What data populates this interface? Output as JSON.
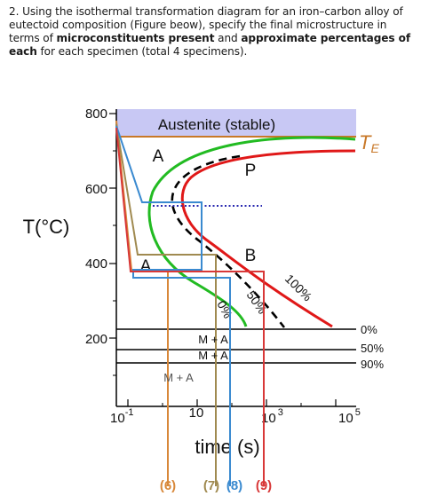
{
  "question": {
    "text_a": "2. Using the isothermal transformation diagram for an iron–carbon alloy of eutectoid composition (Figure beow), specify the final microstructure in terms of ",
    "bold_a": "microconstituents present",
    "text_b": " and ",
    "bold_b": "approximate percentages of each",
    "text_c": " for each specimen (total 4 specimens)."
  },
  "diagram": {
    "austenite_label": "Austenite (stable)",
    "te_label": "T",
    "te_subscript": "E",
    "y_axis_label": "T(°C)",
    "y_ticks": [
      "800",
      "600",
      "400",
      "200"
    ],
    "x_ticks": {
      "t1_base": "10",
      "t1_exp": "-1",
      "t2": "10",
      "t3_base": "10",
      "t3_exp": "3",
      "t4_base": "10",
      "t4_exp": "5"
    },
    "x_axis_label": "time (s)",
    "region_labels": {
      "a_upper": "A",
      "p": "P",
      "b": "B",
      "a_lower": "A"
    },
    "curve_labels": {
      "pct_100": "100%",
      "pct_50": "50%",
      "pct_0": "0%"
    },
    "martensite_lines": {
      "line1_label": "0%",
      "line2_label": "50%",
      "line3_label": "90%",
      "ma_1": "M + A",
      "ma_2": "M + A",
      "ma_3": "M + A"
    },
    "specimens": [
      "(6)",
      "(7)",
      "(8)",
      "(9)"
    ],
    "colors": {
      "austenite_fill": "#c8c8f4",
      "te_line": "#c87828",
      "green_curve": "#22bb22",
      "red_curve": "#e01818",
      "dashed_curve": "#000000",
      "dotted_line": "#2a2ab0",
      "spec6": "#d8883a",
      "spec7": "#a08a50",
      "spec8": "#3a8ad0",
      "spec9": "#d83838"
    }
  }
}
